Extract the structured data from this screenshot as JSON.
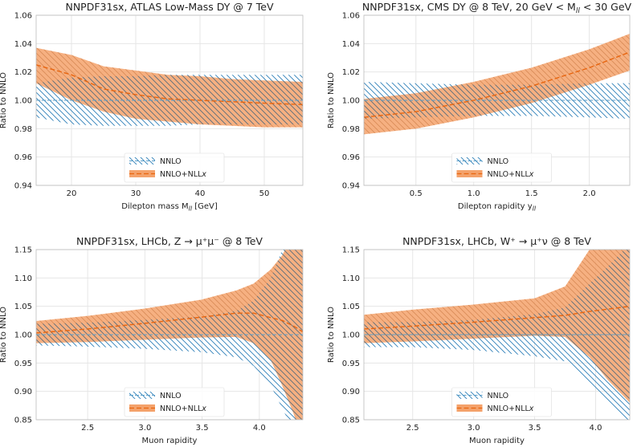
{
  "colors": {
    "nnlo": "#5a9ec9",
    "nnlo_hatch": "#2c7fb8",
    "nll_fill": "#f4a26b",
    "nll_line": "#e8650f",
    "grid": "#e6e6e6",
    "frame": "#bbbbbb"
  },
  "chart_data": [
    {
      "type": "line",
      "title": "NNPDF31sx, ATLAS Low-Mass DY @ 7 TeV",
      "xlabel": "Dilepton mass M",
      "xlabel_sub": "ll",
      "xlabel_suffix": " [GeV]",
      "ylabel": "Ratio to NNLO",
      "xlim": [
        14.5,
        56
      ],
      "ylim": [
        0.94,
        1.06
      ],
      "xticks": [
        20,
        30,
        40,
        50
      ],
      "xtick_labels": [
        "20",
        "30",
        "40",
        "50"
      ],
      "yticks": [
        0.94,
        0.96,
        0.98,
        1.0,
        1.02,
        1.04,
        1.06
      ],
      "ytick_labels": [
        "0.94",
        "0.96",
        "0.98",
        "1.00",
        "1.02",
        "1.04",
        "1.06"
      ],
      "legend": {
        "position": "bottom-center",
        "entries": [
          "NNLO",
          "NNLO+NLLx"
        ]
      },
      "series": [
        {
          "name": "NNLO",
          "x": [
            14.5,
            20,
            25,
            30,
            35,
            40,
            45,
            50,
            56
          ],
          "central": [
            1.0,
            1.0,
            1.0,
            1.0,
            1.0,
            1.0,
            1.0,
            1.0,
            1.0
          ],
          "lower": [
            0.988,
            0.983,
            0.982,
            0.982,
            0.982,
            0.983,
            0.983,
            0.983,
            0.983
          ],
          "upper": [
            1.012,
            1.016,
            1.017,
            1.017,
            1.018,
            1.018,
            1.018,
            1.018,
            1.018
          ]
        },
        {
          "name": "NNLO+NLLx",
          "x": [
            14.5,
            20,
            25,
            30,
            35,
            40,
            45,
            50,
            56
          ],
          "central": [
            1.025,
            1.018,
            1.008,
            1.004,
            1.001,
            1.0,
            0.999,
            0.998,
            0.997
          ],
          "lower": [
            1.012,
            1.0,
            0.992,
            0.987,
            0.985,
            0.983,
            0.982,
            0.981,
            0.981
          ],
          "upper": [
            1.037,
            1.032,
            1.024,
            1.021,
            1.018,
            1.017,
            1.015,
            1.014,
            1.013
          ]
        }
      ]
    },
    {
      "type": "line",
      "title": "NNPDF31sx, CMS DY @ 8 TeV, 20 GeV < M",
      "title_sub": "ll",
      "title_suffix": " < 30 GeV",
      "xlabel": "Dilepton rapidity y",
      "xlabel_sub": "ll",
      "xlabel_suffix": "",
      "ylabel": "Ratio to NNLO",
      "xlim": [
        0.05,
        2.35
      ],
      "ylim": [
        0.94,
        1.06
      ],
      "xticks": [
        0.5,
        1.0,
        1.5,
        2.0
      ],
      "xtick_labels": [
        "0.5",
        "1.0",
        "1.5",
        "2.0"
      ],
      "yticks": [
        0.94,
        0.96,
        0.98,
        1.0,
        1.02,
        1.04,
        1.06
      ],
      "ytick_labels": [
        "0.94",
        "0.96",
        "0.98",
        "1.00",
        "1.02",
        "1.04",
        "1.06"
      ],
      "legend": {
        "position": "bottom-center",
        "entries": [
          "NNLO",
          "NNLO+NLLx"
        ]
      },
      "series": [
        {
          "name": "NNLO",
          "x": [
            0.05,
            0.5,
            1.0,
            1.5,
            2.0,
            2.35
          ],
          "central": [
            1.0,
            1.0,
            1.0,
            1.0,
            1.0,
            1.0
          ],
          "lower": [
            0.987,
            0.988,
            0.989,
            0.989,
            0.988,
            0.987
          ],
          "upper": [
            1.013,
            1.012,
            1.011,
            1.011,
            1.012,
            1.012
          ]
        },
        {
          "name": "NNLO+NLLx",
          "x": [
            0.05,
            0.5,
            1.0,
            1.5,
            2.0,
            2.35
          ],
          "central": [
            0.988,
            0.992,
            1.0,
            1.01,
            1.023,
            1.034
          ],
          "lower": [
            0.976,
            0.98,
            0.988,
            0.998,
            1.011,
            1.021
          ],
          "upper": [
            1.001,
            1.005,
            1.013,
            1.023,
            1.036,
            1.047
          ]
        }
      ]
    },
    {
      "type": "line",
      "title": "NNPDF31sx, LHCb, Z → μ⁺μ⁻ @ 8 TeV",
      "xlabel": "Muon rapidity",
      "xlabel_sub": "",
      "xlabel_suffix": "",
      "ylabel": "Ratio to NNLO",
      "xlim": [
        2.05,
        4.38
      ],
      "ylim": [
        0.85,
        1.15
      ],
      "xticks": [
        2.5,
        3.0,
        3.5,
        4.0
      ],
      "xtick_labels": [
        "2.5",
        "3.0",
        "3.5",
        "4.0"
      ],
      "yticks": [
        0.85,
        0.9,
        0.95,
        1.0,
        1.05,
        1.1,
        1.15
      ],
      "ytick_labels": [
        "0.85",
        "0.90",
        "0.95",
        "1.00",
        "1.05",
        "1.10",
        "1.15"
      ],
      "legend": {
        "position": "bottom-center",
        "entries": [
          "NNLO",
          "NNLO+NLLx"
        ]
      },
      "series": [
        {
          "name": "NNLO",
          "x": [
            2.05,
            2.5,
            3.0,
            3.5,
            3.8,
            3.95,
            4.1,
            4.2,
            4.3,
            4.38
          ],
          "central": [
            1.0,
            1.0,
            1.0,
            1.0,
            1.0,
            1.0,
            1.0,
            1.0,
            1.0,
            1.0
          ],
          "lower": [
            0.981,
            0.979,
            0.975,
            0.969,
            0.96,
            0.945,
            0.91,
            0.87,
            0.83,
            0.79
          ],
          "upper": [
            1.019,
            1.021,
            1.026,
            1.032,
            1.042,
            1.06,
            1.1,
            1.15,
            1.2,
            1.25
          ]
        },
        {
          "name": "NNLO+NLLx",
          "x": [
            2.05,
            2.5,
            3.0,
            3.5,
            3.8,
            3.95,
            4.1,
            4.2,
            4.3,
            4.38
          ],
          "central": [
            1.003,
            1.01,
            1.02,
            1.031,
            1.038,
            1.038,
            1.03,
            1.025,
            1.015,
            1.005
          ],
          "lower": [
            0.985,
            0.987,
            0.991,
            0.995,
            0.996,
            0.985,
            0.955,
            0.91,
            0.86,
            0.81
          ],
          "upper": [
            1.024,
            1.033,
            1.046,
            1.062,
            1.078,
            1.09,
            1.115,
            1.14,
            1.18,
            1.22
          ]
        }
      ]
    },
    {
      "type": "line",
      "title": "NNPDF31sx, LHCb, W⁺ → μ⁺ν @ 8 TeV",
      "xlabel": "Muon rapidity",
      "xlabel_sub": "",
      "xlabel_suffix": "",
      "ylabel": "Ratio to NNLO",
      "xlim": [
        2.1,
        4.28
      ],
      "ylim": [
        0.85,
        1.15
      ],
      "xticks": [
        2.5,
        3.0,
        3.5,
        4.0
      ],
      "xtick_labels": [
        "2.5",
        "3.0",
        "3.5",
        "4.0"
      ],
      "yticks": [
        0.85,
        0.9,
        0.95,
        1.0,
        1.05,
        1.1,
        1.15
      ],
      "ytick_labels": [
        "0.85",
        "0.90",
        "0.95",
        "1.00",
        "1.05",
        "1.10",
        "1.15"
      ],
      "legend": {
        "position": "bottom-center",
        "entries": [
          "NNLO",
          "NNLO+NLLx"
        ]
      },
      "series": [
        {
          "name": "NNLO",
          "x": [
            2.1,
            2.5,
            3.0,
            3.5,
            3.75,
            3.95,
            4.1,
            4.28
          ],
          "central": [
            1.0,
            1.0,
            1.0,
            1.0,
            1.0,
            1.0,
            1.0,
            1.0
          ],
          "lower": [
            0.978,
            0.978,
            0.973,
            0.962,
            0.953,
            0.91,
            0.88,
            0.84
          ],
          "upper": [
            1.022,
            1.022,
            1.026,
            1.036,
            1.048,
            1.09,
            1.12,
            1.16
          ]
        },
        {
          "name": "NNLO+NLLx",
          "x": [
            2.1,
            2.5,
            3.0,
            3.5,
            3.75,
            3.95,
            4.1,
            4.28
          ],
          "central": [
            1.01,
            1.015,
            1.022,
            1.03,
            1.034,
            1.041,
            1.045,
            1.05
          ],
          "lower": [
            0.985,
            0.988,
            0.993,
            0.998,
            0.996,
            0.96,
            0.92,
            0.88
          ],
          "upper": [
            1.035,
            1.044,
            1.053,
            1.064,
            1.085,
            1.15,
            1.19,
            1.23
          ]
        }
      ]
    }
  ]
}
